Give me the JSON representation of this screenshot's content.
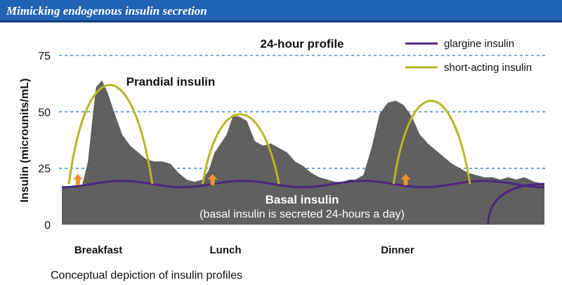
{
  "header": {
    "title": "Mimicking endogenous insulin secretion",
    "color": "#1f63b5"
  },
  "caption": "Conceptual depiction of insulin profiles",
  "chart_data": {
    "type": "area",
    "title": "24-hour profile",
    "xlabel": "",
    "ylabel": "Insulin (microunits/mL)",
    "ylim": [
      0,
      75
    ],
    "yticks": [
      0,
      25,
      50,
      75
    ],
    "gridlines": [
      25,
      50,
      75
    ],
    "grid": "dashed horizontal at 25, 50 and 75",
    "legend_position": "top-right",
    "x_categories": [
      "Breakfast",
      "Lunch",
      "Dinner"
    ],
    "series": [
      {
        "name": "glargine insulin",
        "color": "#4a2680",
        "style": "line"
      },
      {
        "name": "short-acting insulin",
        "color": "#b5b824",
        "style": "line"
      }
    ],
    "endogenous_profile": {
      "color": "#606060",
      "x_hours": [
        0,
        1,
        1.3,
        1.5,
        1.7,
        2,
        2.3,
        2.6,
        3,
        3.4,
        3.8,
        4.2,
        4.6,
        5,
        5.4,
        5.8,
        6.2,
        6.6,
        7,
        7.3,
        7.6,
        7.9,
        8.2,
        8.5,
        8.8,
        9.2,
        9.6,
        10,
        10.4,
        10.8,
        11.2,
        11.6,
        12,
        12.4,
        12.8,
        13.2,
        13.6,
        14,
        14.3,
        14.6,
        15,
        15.4,
        15.8,
        16.2,
        16.6,
        17,
        17.4,
        17.8,
        18.2,
        18.6,
        19,
        19.4,
        19.8,
        20.2,
        20.6,
        21,
        21.4,
        21.8,
        22.2,
        22.6,
        23,
        23.5,
        24
      ],
      "y": [
        17,
        17,
        28,
        45,
        61,
        64,
        58,
        50,
        40,
        35,
        32,
        29,
        28,
        28,
        27,
        23,
        20,
        19,
        20,
        24,
        32,
        36,
        40,
        48,
        48,
        46,
        37,
        35,
        36,
        34,
        32,
        28,
        26,
        23,
        21,
        20,
        19,
        19,
        20,
        20,
        22,
        34,
        49,
        54,
        55,
        53,
        48,
        40,
        36,
        33,
        30,
        27,
        25,
        23,
        22,
        21,
        21,
        20,
        21,
        20,
        21,
        19,
        18
      ]
    },
    "short_acting_peaks": [
      {
        "meal": "Breakfast",
        "start_hour": 0.35,
        "peak_hour": 2.3,
        "end_hour": 4.5,
        "peak": 62
      },
      {
        "meal": "Lunch",
        "start_hour": 7.0,
        "peak_hour": 8.8,
        "end_hour": 10.8,
        "peak": 49
      },
      {
        "meal": "Dinner",
        "start_hour": 16.5,
        "peak_hour": 18.3,
        "end_hour": 20.3,
        "peak": 55
      }
    ],
    "glargine_level": 18,
    "annotations": {
      "prandial": "Prandial insulin",
      "basal_title": "Basal insulin",
      "basal_subtitle": "(basal insulin is secreted 24-hours a day)"
    },
    "injection_markers": [
      {
        "meal": "Breakfast",
        "hour": 0.8,
        "color": "#f0922e"
      },
      {
        "meal": "Lunch",
        "hour": 7.5,
        "color": "#f0922e"
      },
      {
        "meal": "Dinner",
        "hour": 17.1,
        "color": "#f0922e"
      }
    ]
  }
}
